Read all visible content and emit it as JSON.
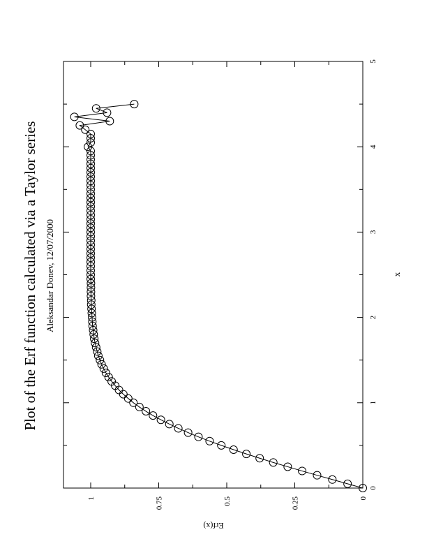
{
  "chart_data": {
    "type": "line",
    "title": "Plot of the Erf function calculated via a Taylor series",
    "subtitle": "Aleksandar Donev, 12/07/2000",
    "xlabel": "x",
    "ylabel": "Erf(x)",
    "xlim": [
      0,
      5
    ],
    "ylim": [
      0,
      1.1
    ],
    "x_ticks": [
      "0",
      "1",
      "2",
      "3",
      "4",
      "5"
    ],
    "y_ticks": [
      "0",
      "0.25",
      "0.5",
      "0.75",
      "1"
    ],
    "marker": "open-circle",
    "orientation": "page rotated 90 degrees counter-clockwise",
    "series": [
      {
        "x": [
          0,
          0.05,
          0.1,
          0.15,
          0.2,
          0.25,
          0.3,
          0.35,
          0.4,
          0.45,
          0.5,
          0.55,
          0.6,
          0.65,
          0.7,
          0.75,
          0.8,
          0.85,
          0.9,
          0.95,
          1.0,
          1.05,
          1.1,
          1.15,
          1.2,
          1.25,
          1.3,
          1.35,
          1.4,
          1.45,
          1.5,
          1.55,
          1.6,
          1.65,
          1.7,
          1.75,
          1.8,
          1.85,
          1.9,
          1.95,
          2.0,
          2.05,
          2.1,
          2.15,
          2.2,
          2.25,
          2.3,
          2.35,
          2.4,
          2.45,
          2.5,
          2.55,
          2.6,
          2.65,
          2.7,
          2.75,
          2.8,
          2.85,
          2.9,
          2.95,
          3.0,
          3.05,
          3.1,
          3.15,
          3.2,
          3.25,
          3.3,
          3.35,
          3.4,
          3.45,
          3.5,
          3.55,
          3.6,
          3.65,
          3.7,
          3.75,
          3.8,
          3.85,
          3.9,
          3.95,
          4.0,
          4.05,
          4.1,
          4.15,
          4.2,
          4.25,
          4.3,
          4.35,
          4.4,
          4.45,
          4.5
        ],
        "y": [
          0,
          0.056,
          0.112,
          0.168,
          0.223,
          0.276,
          0.329,
          0.379,
          0.428,
          0.475,
          0.52,
          0.563,
          0.604,
          0.642,
          0.678,
          0.711,
          0.742,
          0.771,
          0.797,
          0.821,
          0.843,
          0.862,
          0.88,
          0.896,
          0.91,
          0.923,
          0.934,
          0.944,
          0.952,
          0.96,
          0.966,
          0.972,
          0.976,
          0.98,
          0.984,
          0.987,
          0.989,
          0.991,
          0.993,
          0.994,
          0.995,
          0.996,
          0.997,
          0.998,
          0.998,
          0.999,
          0.999,
          0.999,
          0.999,
          1.0,
          1.0,
          1.0,
          1.0,
          1.0,
          1.0,
          1.0,
          1.0,
          1.0,
          1.0,
          1.0,
          1.0,
          1.0,
          1.0,
          1.0,
          1.0,
          1.0,
          1.0,
          1.0,
          1.0,
          1.0,
          1.0,
          1.0,
          1.0,
          1.0,
          1.0,
          1.0,
          1.0,
          1.0,
          1.0,
          1.0,
          1.01,
          1.0,
          1.0,
          1.0,
          1.02,
          1.04,
          0.93,
          1.06,
          0.94,
          0.98,
          0.84
        ]
      }
    ]
  }
}
